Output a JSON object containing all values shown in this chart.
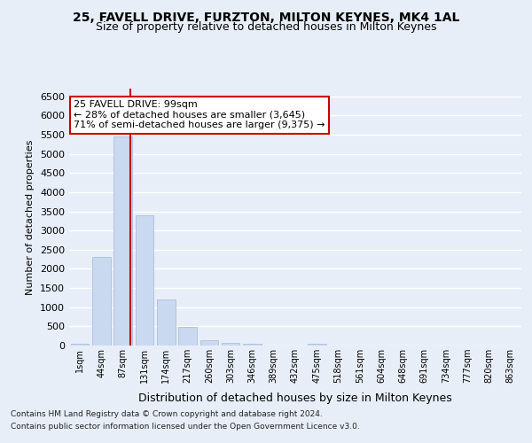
{
  "title1": "25, FAVELL DRIVE, FURZTON, MILTON KEYNES, MK4 1AL",
  "title2": "Size of property relative to detached houses in Milton Keynes",
  "xlabel": "Distribution of detached houses by size in Milton Keynes",
  "ylabel": "Number of detached properties",
  "footer1": "Contains HM Land Registry data © Crown copyright and database right 2024.",
  "footer2": "Contains public sector information licensed under the Open Government Licence v3.0.",
  "annotation_line1": "25 FAVELL DRIVE: 99sqm",
  "annotation_line2": "← 28% of detached houses are smaller (3,645)",
  "annotation_line3": "71% of semi-detached houses are larger (9,375) →",
  "bar_color": "#c9d9f0",
  "bar_edgecolor": "#a0b8d8",
  "marker_line_color": "#cc0000",
  "categories": [
    "1sqm",
    "44sqm",
    "87sqm",
    "131sqm",
    "174sqm",
    "217sqm",
    "260sqm",
    "303sqm",
    "346sqm",
    "389sqm",
    "432sqm",
    "475sqm",
    "518sqm",
    "561sqm",
    "604sqm",
    "648sqm",
    "691sqm",
    "734sqm",
    "777sqm",
    "820sqm",
    "863sqm"
  ],
  "values": [
    50,
    2300,
    5450,
    3400,
    1200,
    475,
    150,
    80,
    50,
    10,
    5,
    50,
    5,
    5,
    2,
    2,
    1,
    1,
    1,
    1,
    1
  ],
  "ylim": [
    0,
    6700
  ],
  "yticks": [
    0,
    500,
    1000,
    1500,
    2000,
    2500,
    3000,
    3500,
    4000,
    4500,
    5000,
    5500,
    6000,
    6500
  ],
  "bg_color": "#e8eef8",
  "plot_bg_color": "#e8eef8",
  "grid_color": "#ffffff",
  "annotation_box_color": "#ffffff",
  "annotation_box_edgecolor": "#cc0000",
  "title1_fontsize": 10,
  "title2_fontsize": 9,
  "ylabel_fontsize": 8,
  "xlabel_fontsize": 9,
  "tick_fontsize": 8,
  "xtick_fontsize": 7,
  "footer_fontsize": 6.5,
  "annot_fontsize": 8
}
